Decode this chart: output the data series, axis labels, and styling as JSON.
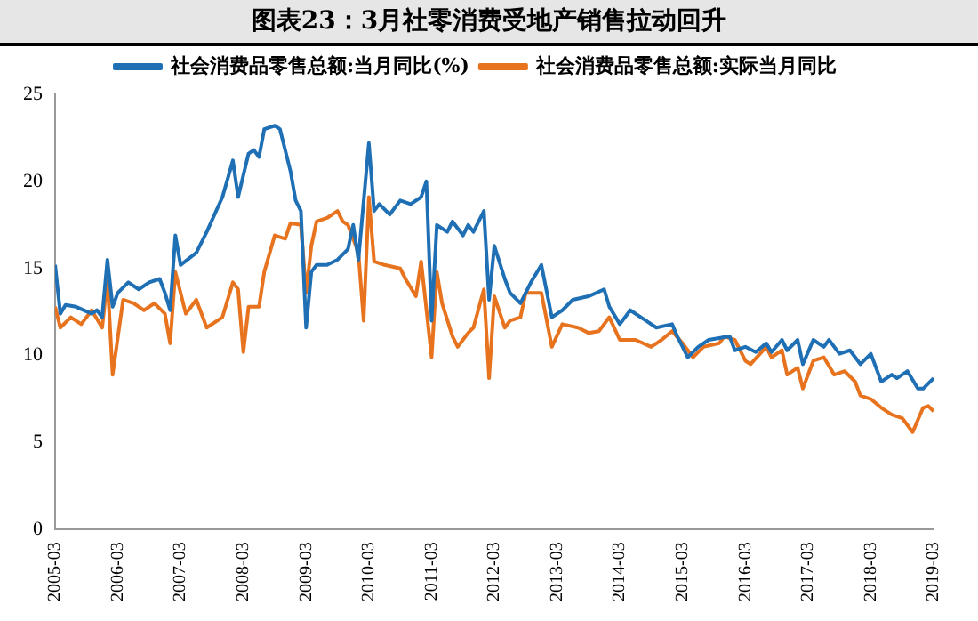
{
  "chart_data": {
    "type": "line",
    "title": "图表23：3月社零消费受地产销售拉动回升",
    "xlim": [
      "2005-03",
      "2019-03"
    ],
    "xticks": [
      "2005-03",
      "2006-03",
      "2007-03",
      "2008-03",
      "2009-03",
      "2010-03",
      "2011-03",
      "2012-03",
      "2013-03",
      "2014-03",
      "2015-03",
      "2016-03",
      "2017-03",
      "2018-03",
      "2019-03"
    ],
    "ylim": [
      0,
      25
    ],
    "yticks": [
      0,
      5,
      10,
      15,
      20,
      25
    ],
    "grid": false,
    "legend": "top",
    "marker": "none",
    "line_style": "solid",
    "series": [
      {
        "name": "社会消费品零售总额:当月同比(%)",
        "color": "#1f6fb5",
        "x": [
          "2005-03",
          "2005-04",
          "2005-05",
          "2005-07",
          "2005-10",
          "2005-11",
          "2005-12",
          "2006-01",
          "2006-02",
          "2006-03",
          "2006-05",
          "2006-07",
          "2006-09",
          "2006-11",
          "2006-12",
          "2007-01",
          "2007-02",
          "2007-03",
          "2007-06",
          "2007-08",
          "2007-11",
          "2008-01",
          "2008-02",
          "2008-04",
          "2008-05",
          "2008-06",
          "2008-07",
          "2008-09",
          "2008-10",
          "2008-12",
          "2009-01",
          "2009-02",
          "2009-03",
          "2009-04",
          "2009-05",
          "2009-07",
          "2009-09",
          "2009-11",
          "2009-12",
          "2010-01",
          "2010-03",
          "2010-04",
          "2010-05",
          "2010-07",
          "2010-09",
          "2010-11",
          "2011-01",
          "2011-02",
          "2011-03",
          "2011-04",
          "2011-06",
          "2011-07",
          "2011-09",
          "2011-10",
          "2011-11",
          "2012-01",
          "2012-02",
          "2012-03",
          "2012-05",
          "2012-06",
          "2012-08",
          "2012-10",
          "2012-12",
          "2013-02",
          "2013-04",
          "2013-06",
          "2013-09",
          "2013-12",
          "2014-01",
          "2014-03",
          "2014-05",
          "2014-08",
          "2014-10",
          "2015-01",
          "2015-02",
          "2015-04",
          "2015-06",
          "2015-08",
          "2015-12",
          "2016-01",
          "2016-03",
          "2016-05",
          "2016-07",
          "2016-08",
          "2016-10",
          "2016-11",
          "2017-01",
          "2017-02",
          "2017-04",
          "2017-06",
          "2017-07",
          "2017-09",
          "2017-11",
          "2017-12",
          "2018-01",
          "2018-03",
          "2018-05",
          "2018-07",
          "2018-08",
          "2018-10",
          "2018-12",
          "2019-01",
          "2019-03"
        ],
        "values": [
          15.2,
          12.4,
          12.9,
          12.8,
          12.4,
          12.6,
          12.2,
          15.5,
          12.8,
          13.6,
          14.2,
          13.8,
          14.2,
          14.4,
          13.6,
          12.6,
          16.9,
          15.2,
          15.9,
          17.1,
          19.1,
          21.2,
          19.1,
          21.6,
          21.8,
          21.4,
          23.0,
          23.2,
          23.0,
          20.6,
          18.9,
          18.3,
          11.6,
          14.8,
          15.2,
          15.2,
          15.5,
          16.1,
          17.5,
          15.5,
          22.2,
          18.3,
          18.7,
          18.1,
          18.9,
          18.7,
          19.1,
          20.0,
          12.0,
          17.5,
          17.1,
          17.7,
          16.9,
          17.5,
          17.1,
          18.3,
          13.2,
          16.3,
          14.4,
          13.6,
          13.0,
          14.2,
          15.2,
          12.2,
          12.6,
          13.2,
          13.4,
          13.8,
          12.8,
          11.8,
          12.6,
          12.0,
          11.6,
          11.8,
          11.1,
          9.9,
          10.5,
          10.9,
          11.1,
          10.3,
          10.5,
          10.2,
          10.7,
          10.2,
          10.9,
          10.3,
          10.9,
          9.5,
          10.9,
          10.5,
          10.9,
          10.1,
          10.3,
          9.9,
          9.5,
          10.1,
          8.5,
          8.9,
          8.7,
          9.1,
          8.1,
          8.1,
          8.7
        ]
      },
      {
        "name": "社会消费品零售总额:实际当月同比",
        "color": "#e8731e",
        "x": [
          "2005-03",
          "2005-04",
          "2005-06",
          "2005-08",
          "2005-10",
          "2005-12",
          "2006-01",
          "2006-02",
          "2006-04",
          "2006-06",
          "2006-08",
          "2006-10",
          "2006-12",
          "2007-01",
          "2007-02",
          "2007-04",
          "2007-06",
          "2007-08",
          "2007-11",
          "2008-01",
          "2008-02",
          "2008-03",
          "2008-04",
          "2008-06",
          "2008-07",
          "2008-09",
          "2008-11",
          "2008-12",
          "2009-02",
          "2009-03",
          "2009-04",
          "2009-05",
          "2009-07",
          "2009-09",
          "2009-10",
          "2009-11",
          "2010-01",
          "2010-02",
          "2010-03",
          "2010-04",
          "2010-06",
          "2010-09",
          "2010-10",
          "2010-12",
          "2011-01",
          "2011-03",
          "2011-04",
          "2011-05",
          "2011-07",
          "2011-08",
          "2011-10",
          "2011-11",
          "2012-01",
          "2012-02",
          "2012-03",
          "2012-05",
          "2012-06",
          "2012-08",
          "2012-09",
          "2012-12",
          "2013-02",
          "2013-04",
          "2013-07",
          "2013-09",
          "2013-11",
          "2014-01",
          "2014-03",
          "2014-06",
          "2014-09",
          "2014-11",
          "2015-01",
          "2015-03",
          "2015-05",
          "2015-07",
          "2015-10",
          "2015-11",
          "2016-01",
          "2016-03",
          "2016-04",
          "2016-07",
          "2016-08",
          "2016-10",
          "2016-11",
          "2017-01",
          "2017-02",
          "2017-04",
          "2017-06",
          "2017-08",
          "2017-10",
          "2017-12",
          "2018-01",
          "2018-03",
          "2018-05",
          "2018-07",
          "2018-09",
          "2018-11",
          "2019-01",
          "2019-02",
          "2019-03"
        ],
        "values": [
          12.8,
          11.6,
          12.2,
          11.8,
          12.6,
          11.6,
          14.4,
          8.9,
          13.2,
          13.0,
          12.6,
          13.0,
          12.4,
          10.7,
          14.8,
          12.4,
          13.2,
          11.6,
          12.2,
          14.2,
          13.8,
          10.2,
          12.8,
          12.8,
          14.8,
          16.9,
          16.7,
          17.6,
          17.5,
          13.6,
          16.3,
          17.7,
          17.9,
          18.3,
          17.7,
          17.5,
          15.9,
          12.0,
          19.1,
          15.4,
          15.2,
          15.0,
          14.4,
          13.4,
          15.4,
          9.9,
          14.8,
          13.0,
          11.1,
          10.5,
          11.3,
          11.6,
          13.8,
          8.7,
          13.4,
          11.6,
          12.0,
          12.2,
          13.6,
          13.6,
          10.5,
          11.8,
          11.6,
          11.3,
          11.4,
          12.2,
          10.9,
          10.9,
          10.5,
          10.9,
          11.4,
          10.7,
          9.9,
          10.5,
          10.7,
          11.1,
          10.9,
          9.7,
          9.5,
          10.5,
          9.9,
          10.3,
          8.9,
          9.3,
          8.1,
          9.7,
          9.9,
          8.9,
          9.1,
          8.5,
          7.7,
          7.5,
          7.0,
          6.6,
          6.4,
          5.6,
          7.0,
          7.1,
          6.8
        ]
      }
    ]
  }
}
